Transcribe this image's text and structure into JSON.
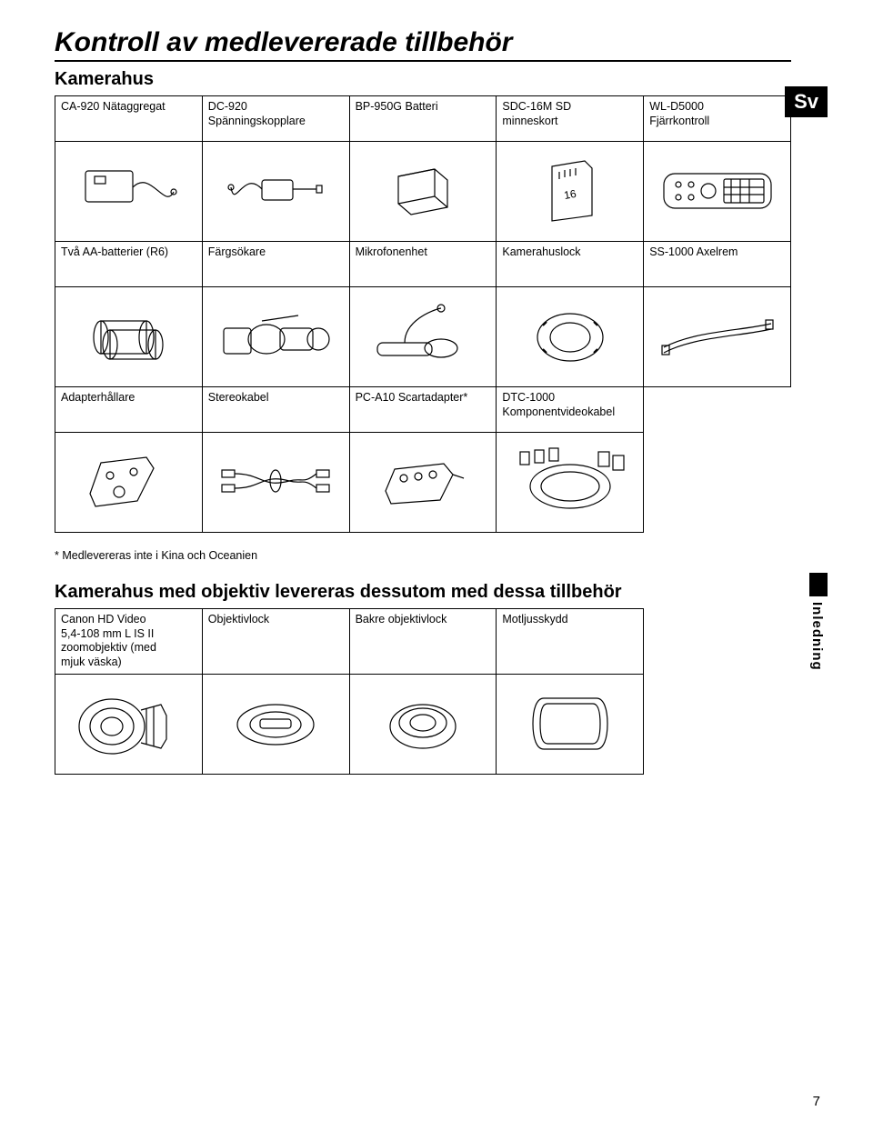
{
  "page": {
    "title": "Kontroll av medlevererade tillbehör",
    "lang_badge": "Sv",
    "side_tab": "Inledning",
    "page_number": "7"
  },
  "section1": {
    "heading": "Kamerahus",
    "rows": [
      {
        "cells": [
          {
            "label": "CA-920 Nätaggregat",
            "icon": "power-adapter"
          },
          {
            "label": "DC-920\nSpänningskopplare",
            "icon": "dc-coupler"
          },
          {
            "label": "BP-950G Batteri",
            "icon": "battery-pack"
          },
          {
            "label": "SDC-16M SD\nminneskort",
            "icon": "sd-card"
          },
          {
            "label": "WL-D5000\nFjärrkontroll",
            "icon": "remote"
          }
        ]
      },
      {
        "cells": [
          {
            "label": "Två AA-batterier (R6)",
            "icon": "aa-batteries"
          },
          {
            "label": "Färgsökare",
            "icon": "viewfinder"
          },
          {
            "label": "Mikrofonenhet",
            "icon": "microphone"
          },
          {
            "label": "Kamerahuslock",
            "icon": "body-cap"
          },
          {
            "label": "SS-1000 Axelrem",
            "icon": "strap"
          }
        ]
      },
      {
        "cells": [
          {
            "label": "Adapterhållare",
            "icon": "adapter-holder"
          },
          {
            "label": "Stereokabel",
            "icon": "stereo-cable"
          },
          {
            "label": "PC-A10 Scartadapter*",
            "icon": "scart-adapter"
          },
          {
            "label": "DTC-1000\nKomponentvideokabel",
            "icon": "component-cable"
          },
          {
            "blank": true
          }
        ]
      }
    ],
    "footnote": "* Medlevereras inte i Kina och Oceanien"
  },
  "section2": {
    "heading": "Kamerahus med objektiv levereras dessutom med dessa tillbehör",
    "rows": [
      {
        "cells": [
          {
            "label": "Canon HD Video\n5,4-108 mm L IS II\nzoomobjektiv (med\nmjuk väska)",
            "icon": "zoom-lens"
          },
          {
            "label": "Objektivlock",
            "icon": "front-cap"
          },
          {
            "label": "Bakre objektivlock",
            "icon": "rear-cap"
          },
          {
            "label": "Motljusskydd",
            "icon": "lens-hood"
          },
          {
            "blank": true
          }
        ]
      }
    ]
  }
}
